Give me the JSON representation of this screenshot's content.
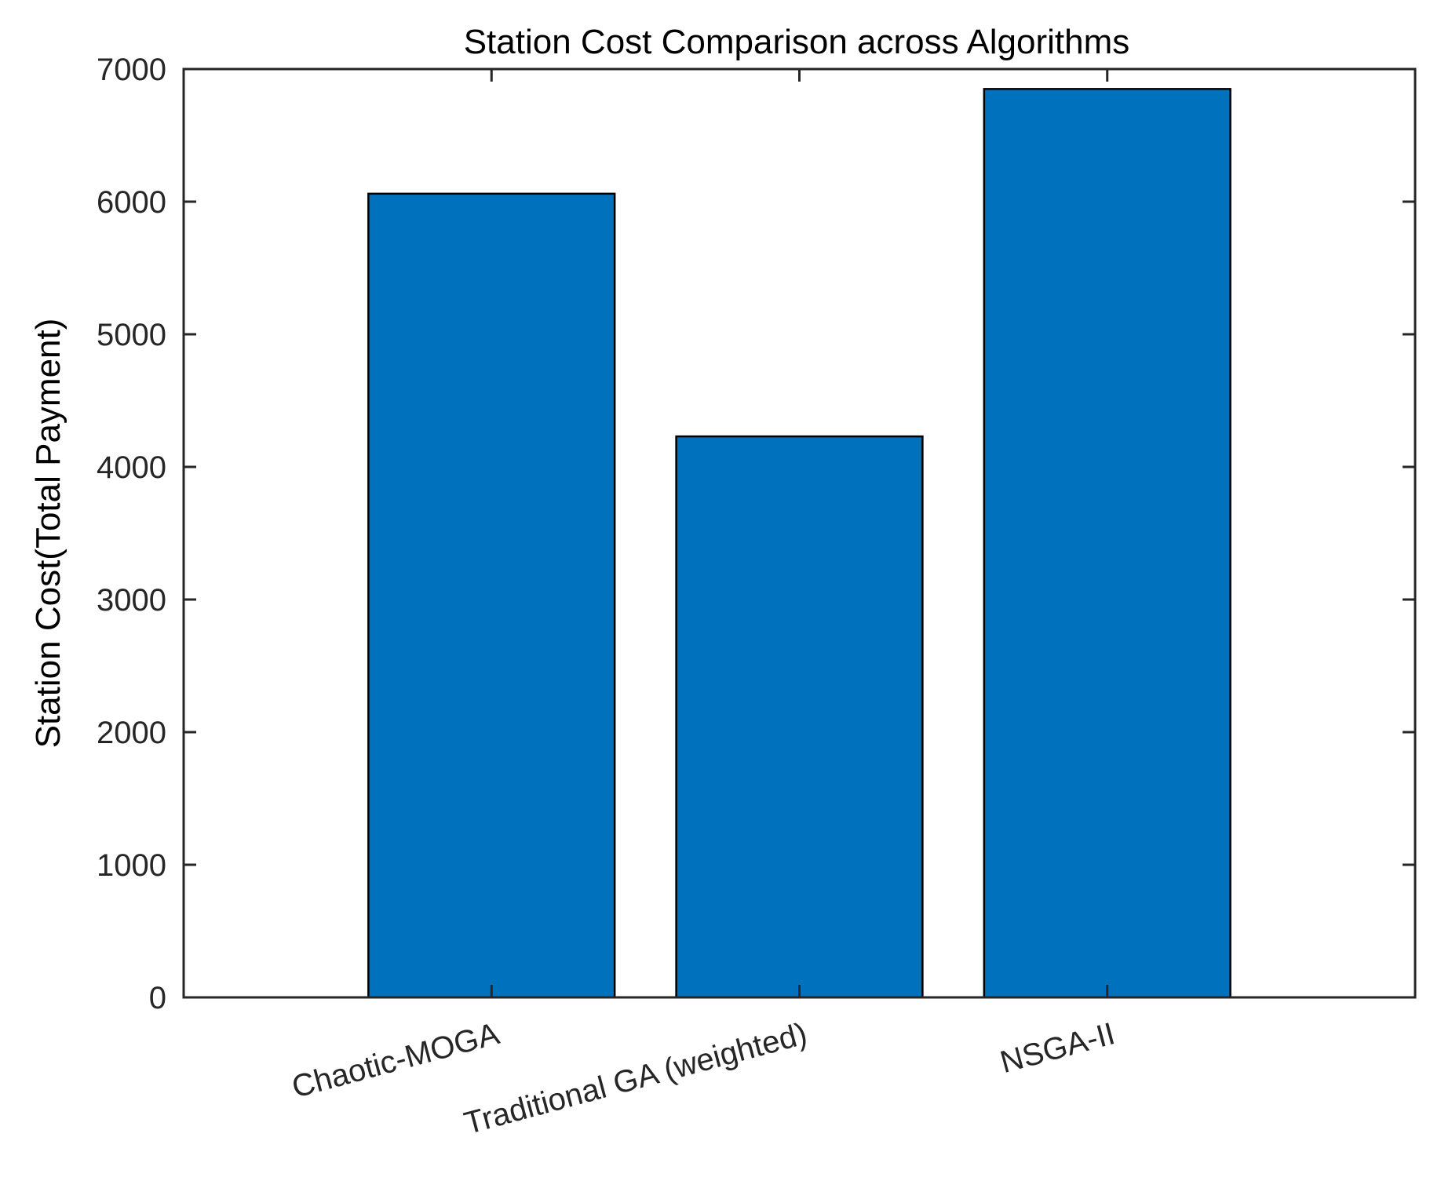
{
  "chart_data": {
    "type": "bar",
    "title": "Station Cost Comparison across Algorithms",
    "xlabel": "",
    "ylabel": "Station Cost(Total Payment)",
    "categories": [
      "Chaotic-MOGA",
      "Traditional GA (weighted)",
      "NSGA-II"
    ],
    "values": [
      6060,
      4230,
      6850
    ],
    "ylim": [
      0,
      7000
    ],
    "yticks": [
      "0",
      "1000",
      "2000",
      "3000",
      "4000",
      "5000",
      "6000",
      "7000"
    ],
    "grid": false,
    "bar_color": "#0072BD",
    "edge_color": "#000000"
  }
}
